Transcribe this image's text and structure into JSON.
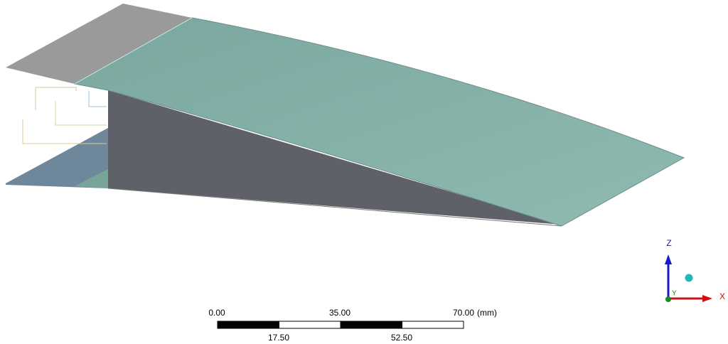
{
  "scale_bar": {
    "top_labels": [
      "0.00",
      "35.00",
      "70.00"
    ],
    "unit": "(mm)",
    "bottom_labels": [
      "17.50",
      "52.50"
    ]
  },
  "triad": {
    "z": "Z",
    "y": "Y",
    "x": "X"
  }
}
